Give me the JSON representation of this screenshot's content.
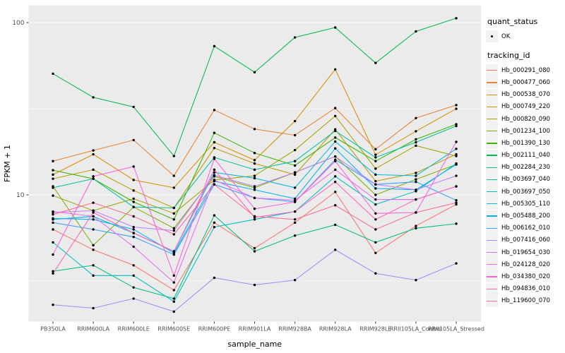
{
  "legend": {
    "quant_status_title": "quant_status",
    "quant_status_value": "OK",
    "tracking_title": "tracking_id"
  },
  "colors": {
    "panel_bg": "#EBEBEB",
    "grid": "#FFFFFF",
    "tick_text": "#4D4D4D",
    "axis_title_text": "#000000",
    "tick_mark": "#333333",
    "point": "#000000",
    "legend_key_bg": "#F2F2F2"
  },
  "chart_data": {
    "type": "line",
    "title": "",
    "xlabel": "sample_name",
    "ylabel": "FPKM + 1",
    "y_scale": "log10",
    "y_tick_labels": [
      "10",
      "100"
    ],
    "y_major_breaks": [
      10,
      100
    ],
    "y_minor_breaks": [
      3.1623,
      31.623
    ],
    "ylim": [
      1.8,
      126
    ],
    "grid": true,
    "legend_position": "right",
    "point_shape": "solid-circle",
    "categories": [
      "PB350LA",
      "RRIM600LA",
      "RRIM600LE",
      "RRIM600SE",
      "RRIM600PE",
      "RRIM901LA",
      "RRIM928BA",
      "RRIM928LA",
      "RRIM928LE",
      "RRII105LA_Control",
      "RRII105LA_Stressed"
    ],
    "series": [
      {
        "name": "Hb_000291_080",
        "color": "#F8766D",
        "values": [
          6.3,
          4.8,
          3.9,
          2.8,
          6.9,
          4.9,
          6.9,
          10.4,
          4.6,
          6.6,
          8.8
        ]
      },
      {
        "name": "Hb_000477_060",
        "color": "#EA8331",
        "values": [
          15.7,
          18.1,
          20.8,
          12.9,
          31.1,
          24.1,
          22.2,
          31.9,
          18.4,
          27.9,
          33.2
        ]
      },
      {
        "name": "Hb_000538_070",
        "color": "#D89000",
        "values": [
          13.1,
          17.2,
          12.2,
          11.0,
          20.2,
          15.9,
          26.8,
          53.5,
          17.1,
          23.4,
          31.6
        ]
      },
      {
        "name": "Hb_000749_220",
        "color": "#C09B00",
        "values": [
          12.4,
          14.0,
          10.6,
          8.4,
          18.7,
          15.2,
          13.1,
          24.0,
          12.0,
          13.4,
          17.2
        ]
      },
      {
        "name": "Hb_000820_090",
        "color": "#A3A500",
        "values": [
          9.9,
          8.1,
          9.5,
          7.8,
          12.2,
          12.9,
          18.2,
          28.7,
          14.2,
          19.3,
          16.8
        ]
      },
      {
        "name": "Hb_001234_100",
        "color": "#7CAE00",
        "values": [
          11.2,
          5.1,
          8.5,
          6.4,
          12.8,
          11.0,
          13.5,
          16.7,
          10.0,
          12.3,
          15.0
        ]
      },
      {
        "name": "Hb_001390_130",
        "color": "#39B600",
        "values": [
          13.9,
          12.4,
          9.1,
          7.2,
          22.9,
          17.5,
          14.8,
          21.5,
          15.7,
          21.0,
          25.7
        ]
      },
      {
        "name": "Hb_002111_040",
        "color": "#00BB4E",
        "values": [
          50.5,
          36.8,
          32.4,
          16.8,
          73.0,
          51.5,
          82.0,
          93.6,
          58.3,
          88.9,
          106.0
        ]
      },
      {
        "name": "Hb_002284_230",
        "color": "#00BF7D",
        "values": [
          3.6,
          3.9,
          2.9,
          2.5,
          7.6,
          4.7,
          5.8,
          6.7,
          5.3,
          6.4,
          6.8
        ]
      },
      {
        "name": "Hb_003697_040",
        "color": "#00C1A3",
        "values": [
          11.0,
          12.4,
          8.5,
          8.4,
          16.5,
          14.0,
          15.7,
          23.5,
          16.5,
          20.2,
          25.1
        ]
      },
      {
        "name": "Hb_003697_050",
        "color": "#00BFC4",
        "values": [
          5.3,
          3.4,
          3.4,
          2.4,
          6.5,
          7.2,
          8.0,
          12.8,
          8.8,
          10.5,
          15.2
        ]
      },
      {
        "name": "Hb_005305_110",
        "color": "#00BAE0",
        "values": [
          7.2,
          7.5,
          6.0,
          4.7,
          13.5,
          12.5,
          11.0,
          20.4,
          13.1,
          12.9,
          18.5
        ]
      },
      {
        "name": "Hb_005488_200",
        "color": "#00B0F6",
        "values": [
          7.3,
          7.2,
          6.3,
          4.6,
          12.0,
          10.7,
          9.5,
          18.6,
          10.9,
          10.7,
          15.0
        ]
      },
      {
        "name": "Hb_006162_010",
        "color": "#35A2FF",
        "values": [
          6.9,
          6.3,
          5.7,
          4.5,
          11.5,
          9.6,
          9.1,
          16.0,
          11.5,
          11.9,
          9.3
        ]
      },
      {
        "name": "Hb_007416_060",
        "color": "#9590FF",
        "values": [
          2.3,
          2.2,
          2.5,
          2.1,
          3.3,
          3.0,
          3.2,
          4.8,
          3.5,
          3.2,
          4.0
        ]
      },
      {
        "name": "Hb_019654_030",
        "color": "#C77CFF",
        "values": [
          7.9,
          8.1,
          6.5,
          6.2,
          13.0,
          11.2,
          13.5,
          16.7,
          11.5,
          10.7,
          12.9
        ]
      },
      {
        "name": "Hb_024128_020",
        "color": "#E76BF3",
        "values": [
          8.0,
          7.5,
          5.0,
          3.1,
          12.2,
          9.6,
          9.3,
          14.0,
          9.4,
          9.4,
          11.2
        ]
      },
      {
        "name": "Hb_034380_020",
        "color": "#FA62DB",
        "values": [
          4.5,
          12.8,
          14.6,
          3.4,
          16.2,
          8.3,
          9.1,
          15.7,
          7.8,
          7.9,
          20.3
        ]
      },
      {
        "name": "Hb_094836_010",
        "color": "#FF62BC",
        "values": [
          3.5,
          7.9,
          6.0,
          4.7,
          14.0,
          7.4,
          8.0,
          11.9,
          7.2,
          9.4,
          11.2
        ]
      },
      {
        "name": "Hb_119600_070",
        "color": "#FF6A98",
        "values": [
          7.7,
          9.0,
          7.5,
          5.9,
          11.5,
          7.5,
          7.2,
          8.7,
          6.3,
          7.9,
          9.0
        ]
      }
    ]
  }
}
